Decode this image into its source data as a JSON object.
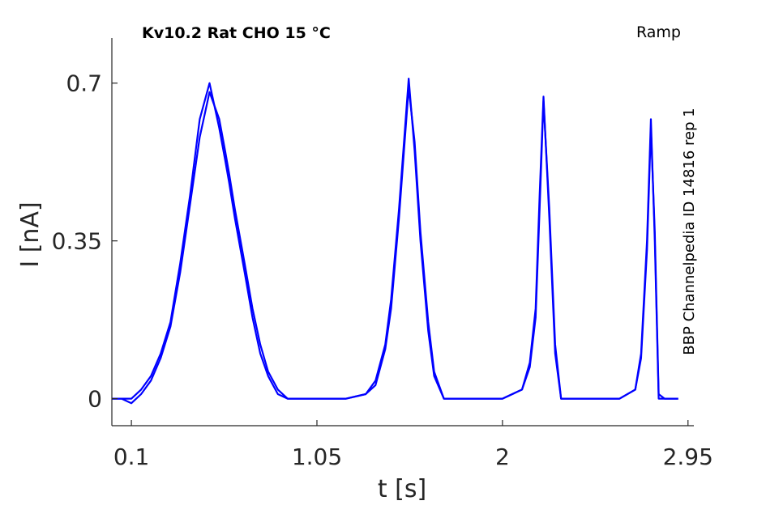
{
  "chart_data": {
    "type": "line",
    "title": "Kv10.2  Rat  CHO  15 °C",
    "protocol": "Ramp",
    "side_note": "BBP Channelpedia ID 14816 rep 1",
    "xlabel": "t [s]",
    "ylabel": "I [nA]",
    "xlim": [
      0.0,
      2.98
    ],
    "ylim": [
      -0.06,
      0.8
    ],
    "xticks": [
      0.1,
      1.05,
      2,
      2.95
    ],
    "xtick_labels": [
      "0.1",
      "1.05",
      "2",
      "2.95"
    ],
    "yticks": [
      0,
      0.35,
      0.7
    ],
    "ytick_labels": [
      "0",
      "0.35",
      "0.7"
    ],
    "grid": false,
    "color": "#0000ff",
    "series": [
      {
        "x": [
          0.0,
          0.05,
          0.1,
          0.15,
          0.2,
          0.25,
          0.3,
          0.35,
          0.4,
          0.45,
          0.5,
          0.55,
          0.58,
          0.6,
          0.63,
          0.68,
          0.72,
          0.76,
          0.8,
          0.85,
          0.9,
          0.95,
          1.0,
          1.05,
          1.1,
          1.2,
          1.3,
          1.35,
          1.4,
          1.43,
          1.47,
          1.52,
          1.55,
          1.58,
          1.62,
          1.65,
          1.7,
          1.75,
          1.8,
          1.9,
          2.0,
          2.1,
          2.14,
          2.17,
          2.19,
          2.21,
          2.24,
          2.27,
          2.3,
          2.4,
          2.5,
          2.6,
          2.68,
          2.71,
          2.74,
          2.76,
          2.78,
          2.8,
          2.83,
          2.87,
          2.9
        ],
        "values": [
          0.0,
          0.0,
          0.0,
          0.02,
          0.05,
          0.1,
          0.17,
          0.3,
          0.45,
          0.62,
          0.7,
          0.6,
          0.53,
          0.48,
          0.4,
          0.28,
          0.18,
          0.1,
          0.05,
          0.01,
          0.0,
          0.0,
          0.0,
          0.0,
          0.0,
          0.0,
          0.01,
          0.04,
          0.12,
          0.22,
          0.42,
          0.71,
          0.55,
          0.35,
          0.15,
          0.05,
          0.0,
          0.0,
          0.0,
          0.0,
          0.0,
          0.02,
          0.08,
          0.2,
          0.45,
          0.67,
          0.4,
          0.1,
          0.0,
          0.0,
          0.0,
          0.0,
          0.02,
          0.1,
          0.35,
          0.62,
          0.35,
          0.0,
          0.0,
          0.0,
          0.0
        ]
      },
      {
        "x": [
          0.0,
          0.05,
          0.1,
          0.15,
          0.2,
          0.25,
          0.3,
          0.35,
          0.4,
          0.45,
          0.5,
          0.55,
          0.58,
          0.6,
          0.63,
          0.68,
          0.72,
          0.76,
          0.8,
          0.85,
          0.9,
          0.95,
          1.0,
          1.05,
          1.1,
          1.2,
          1.3,
          1.35,
          1.4,
          1.43,
          1.47,
          1.52,
          1.55,
          1.58,
          1.62,
          1.65,
          1.7,
          1.75,
          1.8,
          1.9,
          2.0,
          2.1,
          2.14,
          2.17,
          2.19,
          2.21,
          2.24,
          2.27,
          2.3,
          2.4,
          2.5,
          2.6,
          2.68,
          2.71,
          2.74,
          2.76,
          2.78,
          2.8,
          2.83,
          2.87,
          2.9
        ],
        "values": [
          0.0,
          0.0,
          -0.01,
          0.01,
          0.04,
          0.09,
          0.16,
          0.28,
          0.43,
          0.58,
          0.68,
          0.62,
          0.55,
          0.5,
          0.42,
          0.3,
          0.2,
          0.12,
          0.06,
          0.02,
          0.0,
          0.0,
          0.0,
          0.0,
          0.0,
          0.0,
          0.01,
          0.03,
          0.11,
          0.2,
          0.4,
          0.69,
          0.57,
          0.37,
          0.17,
          0.06,
          0.0,
          0.0,
          0.0,
          0.0,
          0.0,
          0.02,
          0.07,
          0.18,
          0.42,
          0.66,
          0.42,
          0.12,
          0.0,
          0.0,
          0.0,
          0.0,
          0.02,
          0.09,
          0.33,
          0.6,
          0.37,
          0.01,
          0.0,
          0.0,
          0.0
        ]
      }
    ]
  }
}
